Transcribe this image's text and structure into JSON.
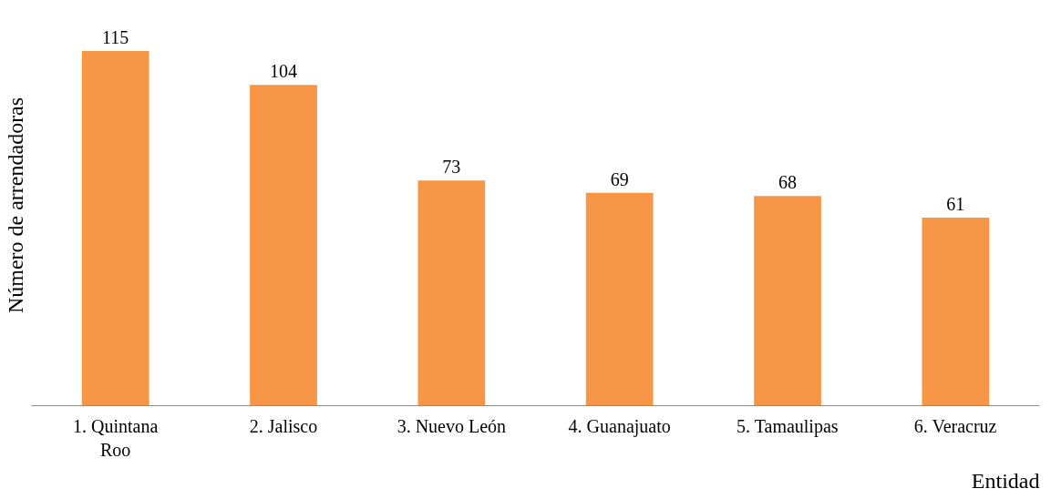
{
  "chart_data": {
    "type": "bar",
    "xlabel": "Entidad",
    "ylabel": "Número de arrendadoras",
    "categories": [
      "1. Quintana Roo",
      "2. Jalisco",
      "3. Nuevo León",
      "4. Guanajuato",
      "5. Tamaulipas",
      "6. Veracruz"
    ],
    "values": [
      115,
      104,
      73,
      69,
      68,
      61
    ],
    "color": "#f79646",
    "data_labels": true,
    "grid": false
  }
}
